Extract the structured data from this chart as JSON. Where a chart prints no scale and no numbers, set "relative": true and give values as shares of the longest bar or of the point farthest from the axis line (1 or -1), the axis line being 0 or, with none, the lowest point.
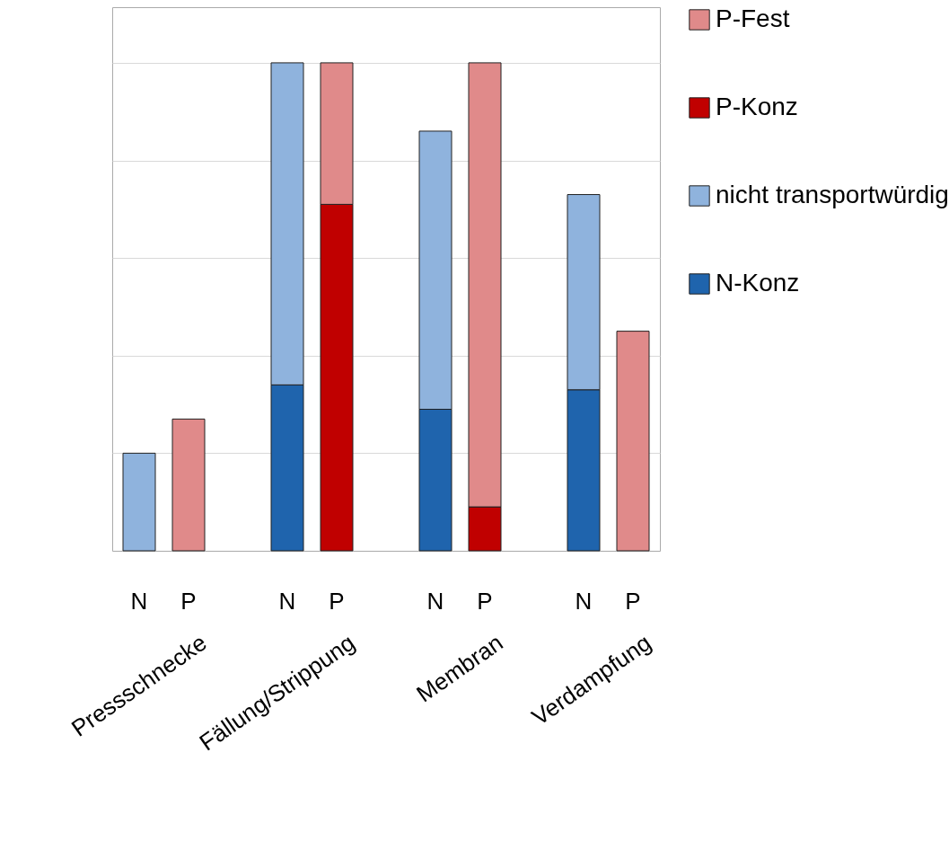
{
  "chart_data": {
    "type": "bar",
    "stacked": true,
    "relative": true,
    "grid": "y",
    "legend": "right",
    "categories": [
      "N",
      "P",
      "N",
      "P",
      "N",
      "P",
      "N",
      "P"
    ],
    "annotations": [
      "Pressschnecke",
      "Fällung/Strippung",
      "Membran",
      "Verdampfung"
    ],
    "series": [
      {
        "name": "N-Konz",
        "color": "#1f64ad",
        "values": [
          null,
          null,
          0.34,
          null,
          0.29,
          null,
          0.33,
          null
        ]
      },
      {
        "name": "nicht transportwürdig",
        "color": "#8fb3dd",
        "values": [
          0.2,
          null,
          0.66,
          null,
          0.57,
          null,
          0.4,
          null
        ]
      },
      {
        "name": "P-Konz",
        "color": "#c00000",
        "values": [
          null,
          null,
          null,
          0.71,
          null,
          0.09,
          null,
          null
        ]
      },
      {
        "name": "P-Fest",
        "color": "#e08a8a",
        "values": [
          null,
          0.27,
          null,
          0.29,
          null,
          0.91,
          null,
          0.45
        ]
      }
    ]
  }
}
